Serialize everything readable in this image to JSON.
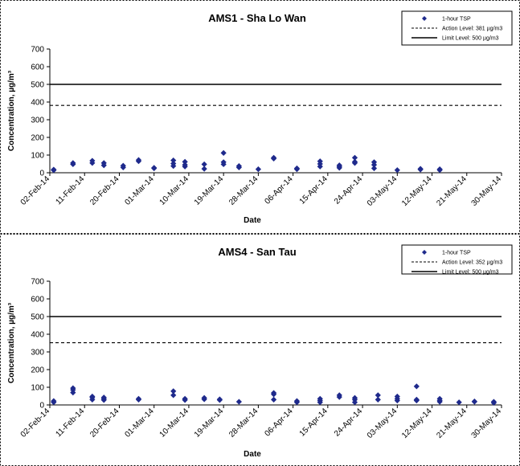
{
  "chart_data": [
    {
      "type": "scatter",
      "title": "AMS1 - Sha Lo Wan",
      "xlabel": "Date",
      "ylabel": "Concentration, µg/m³",
      "ylim": [
        0,
        700
      ],
      "yticks": [
        "0",
        "100",
        "200",
        "300",
        "400",
        "500",
        "600",
        "700"
      ],
      "xlim": [
        "2014-02-02",
        "2014-05-30"
      ],
      "xticks": [
        "02-Feb-14",
        "11-Feb-14",
        "20-Feb-14",
        "01-Mar-14",
        "10-Mar-14",
        "19-Mar-14",
        "28-Mar-14",
        "06-Apr-14",
        "15-Apr-14",
        "24-Apr-14",
        "03-May-14",
        "12-May-14",
        "21-May-14",
        "30-May-14"
      ],
      "xtick_dates": [
        "2014-02-02",
        "2014-02-11",
        "2014-02-20",
        "2014-03-01",
        "2014-03-10",
        "2014-03-19",
        "2014-03-28",
        "2014-04-06",
        "2014-04-15",
        "2014-04-24",
        "2014-05-03",
        "2014-05-12",
        "2014-05-21",
        "2014-05-30"
      ],
      "grid": false,
      "legend_position": "top-right",
      "series": [
        {
          "name": "1-hour TSP",
          "color": "#1f2a8c",
          "points": [
            {
              "x": "2014-02-03",
              "y": 14
            },
            {
              "x": "2014-02-03",
              "y": 18
            },
            {
              "x": "2014-02-08",
              "y": 48
            },
            {
              "x": "2014-02-08",
              "y": 55
            },
            {
              "x": "2014-02-13",
              "y": 55
            },
            {
              "x": "2014-02-13",
              "y": 68
            },
            {
              "x": "2014-02-16",
              "y": 42
            },
            {
              "x": "2014-02-16",
              "y": 55
            },
            {
              "x": "2014-02-21",
              "y": 30
            },
            {
              "x": "2014-02-21",
              "y": 40
            },
            {
              "x": "2014-02-25",
              "y": 65
            },
            {
              "x": "2014-02-25",
              "y": 72
            },
            {
              "x": "2014-03-01",
              "y": 25
            },
            {
              "x": "2014-03-01",
              "y": 28
            },
            {
              "x": "2014-03-06",
              "y": 38
            },
            {
              "x": "2014-03-06",
              "y": 52
            },
            {
              "x": "2014-03-06",
              "y": 70
            },
            {
              "x": "2014-03-09",
              "y": 35
            },
            {
              "x": "2014-03-09",
              "y": 45
            },
            {
              "x": "2014-03-09",
              "y": 62
            },
            {
              "x": "2014-03-14",
              "y": 22
            },
            {
              "x": "2014-03-14",
              "y": 48
            },
            {
              "x": "2014-03-19",
              "y": 48
            },
            {
              "x": "2014-03-19",
              "y": 60
            },
            {
              "x": "2014-03-19",
              "y": 112
            },
            {
              "x": "2014-03-23",
              "y": 30
            },
            {
              "x": "2014-03-23",
              "y": 38
            },
            {
              "x": "2014-03-28",
              "y": 20
            },
            {
              "x": "2014-04-01",
              "y": 80
            },
            {
              "x": "2014-04-01",
              "y": 85
            },
            {
              "x": "2014-04-07",
              "y": 20
            },
            {
              "x": "2014-04-07",
              "y": 25
            },
            {
              "x": "2014-04-13",
              "y": 35
            },
            {
              "x": "2014-04-13",
              "y": 50
            },
            {
              "x": "2014-04-13",
              "y": 65
            },
            {
              "x": "2014-04-18",
              "y": 28
            },
            {
              "x": "2014-04-18",
              "y": 35
            },
            {
              "x": "2014-04-18",
              "y": 42
            },
            {
              "x": "2014-04-22",
              "y": 55
            },
            {
              "x": "2014-04-22",
              "y": 62
            },
            {
              "x": "2014-04-22",
              "y": 85
            },
            {
              "x": "2014-04-27",
              "y": 25
            },
            {
              "x": "2014-04-27",
              "y": 45
            },
            {
              "x": "2014-04-27",
              "y": 60
            },
            {
              "x": "2014-05-03",
              "y": 15
            },
            {
              "x": "2014-05-09",
              "y": 18
            },
            {
              "x": "2014-05-09",
              "y": 22
            },
            {
              "x": "2014-05-14",
              "y": 15
            },
            {
              "x": "2014-05-14",
              "y": 20
            }
          ]
        },
        {
          "name": "Action Level: 381 µg/m3",
          "line": "dashed",
          "color": "#000000",
          "value": 381
        },
        {
          "name": "Limit Level: 500 µg/m3",
          "line": "solid",
          "color": "#000000",
          "value": 500
        }
      ]
    },
    {
      "type": "scatter",
      "title": "AMS4 - San Tau",
      "xlabel": "Date",
      "ylabel": "Concentration, µg/m³",
      "ylim": [
        0,
        700
      ],
      "yticks": [
        "0",
        "100",
        "200",
        "300",
        "400",
        "500",
        "600",
        "700"
      ],
      "xlim": [
        "2014-02-02",
        "2014-05-30"
      ],
      "xticks": [
        "02-Feb-14",
        "11-Feb-14",
        "20-Feb-14",
        "01-Mar-14",
        "10-Mar-14",
        "19-Mar-14",
        "28-Mar-14",
        "06-Apr-14",
        "15-Apr-14",
        "24-Apr-14",
        "03-May-14",
        "12-May-14",
        "21-May-14",
        "30-May-14"
      ],
      "xtick_dates": [
        "2014-02-02",
        "2014-02-11",
        "2014-02-20",
        "2014-03-01",
        "2014-03-10",
        "2014-03-19",
        "2014-03-28",
        "2014-04-06",
        "2014-04-15",
        "2014-04-24",
        "2014-05-03",
        "2014-05-12",
        "2014-05-21",
        "2014-05-30"
      ],
      "grid": false,
      "legend_position": "top-right",
      "series": [
        {
          "name": "1-hour TSP",
          "color": "#1f2a8c",
          "points": [
            {
              "x": "2014-02-03",
              "y": 15
            },
            {
              "x": "2014-02-03",
              "y": 22
            },
            {
              "x": "2014-02-08",
              "y": 70
            },
            {
              "x": "2014-02-08",
              "y": 85
            },
            {
              "x": "2014-02-08",
              "y": 95
            },
            {
              "x": "2014-02-13",
              "y": 30
            },
            {
              "x": "2014-02-13",
              "y": 42
            },
            {
              "x": "2014-02-13",
              "y": 48
            },
            {
              "x": "2014-02-16",
              "y": 28
            },
            {
              "x": "2014-02-16",
              "y": 35
            },
            {
              "x": "2014-02-16",
              "y": 42
            },
            {
              "x": "2014-02-25",
              "y": 30
            },
            {
              "x": "2014-02-25",
              "y": 35
            },
            {
              "x": "2014-03-06",
              "y": 55
            },
            {
              "x": "2014-03-06",
              "y": 78
            },
            {
              "x": "2014-03-09",
              "y": 28
            },
            {
              "x": "2014-03-09",
              "y": 35
            },
            {
              "x": "2014-03-14",
              "y": 32
            },
            {
              "x": "2014-03-14",
              "y": 40
            },
            {
              "x": "2014-03-18",
              "y": 28
            },
            {
              "x": "2014-03-18",
              "y": 32
            },
            {
              "x": "2014-03-23",
              "y": 18
            },
            {
              "x": "2014-04-01",
              "y": 30
            },
            {
              "x": "2014-04-01",
              "y": 60
            },
            {
              "x": "2014-04-01",
              "y": 68
            },
            {
              "x": "2014-04-07",
              "y": 15
            },
            {
              "x": "2014-04-07",
              "y": 22
            },
            {
              "x": "2014-04-13",
              "y": 15
            },
            {
              "x": "2014-04-13",
              "y": 25
            },
            {
              "x": "2014-04-13",
              "y": 35
            },
            {
              "x": "2014-04-18",
              "y": 45
            },
            {
              "x": "2014-04-18",
              "y": 55
            },
            {
              "x": "2014-04-22",
              "y": 15
            },
            {
              "x": "2014-04-22",
              "y": 30
            },
            {
              "x": "2014-04-22",
              "y": 40
            },
            {
              "x": "2014-04-28",
              "y": 30
            },
            {
              "x": "2014-04-28",
              "y": 55
            },
            {
              "x": "2014-05-03",
              "y": 25
            },
            {
              "x": "2014-05-03",
              "y": 35
            },
            {
              "x": "2014-05-03",
              "y": 48
            },
            {
              "x": "2014-05-08",
              "y": 25
            },
            {
              "x": "2014-05-08",
              "y": 30
            },
            {
              "x": "2014-05-08",
              "y": 105
            },
            {
              "x": "2014-05-14",
              "y": 18
            },
            {
              "x": "2014-05-14",
              "y": 25
            },
            {
              "x": "2014-05-14",
              "y": 35
            },
            {
              "x": "2014-05-19",
              "y": 15
            },
            {
              "x": "2014-05-23",
              "y": 18
            },
            {
              "x": "2014-05-23",
              "y": 20
            },
            {
              "x": "2014-05-28",
              "y": 12
            },
            {
              "x": "2014-05-28",
              "y": 18
            }
          ]
        },
        {
          "name": "Action Level: 352 µg/m3",
          "line": "dashed",
          "color": "#000000",
          "value": 352
        },
        {
          "name": "Limit Level: 500 µg/m3",
          "line": "solid",
          "color": "#000000",
          "value": 500
        }
      ]
    }
  ]
}
